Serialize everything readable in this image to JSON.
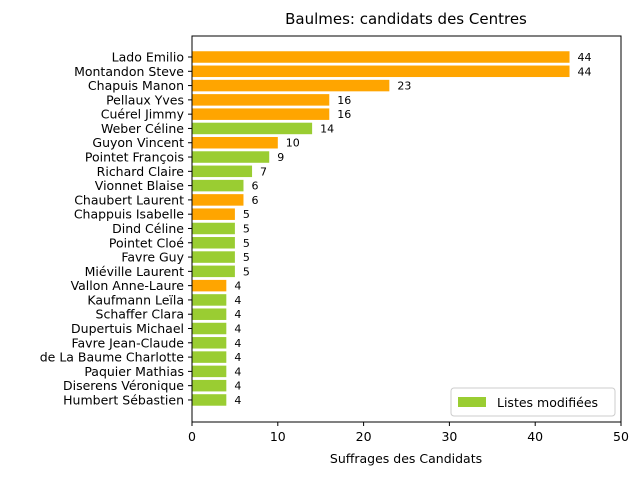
{
  "chart_data": {
    "type": "bar",
    "orientation": "horizontal",
    "title": "Baulmes: candidats des Centres",
    "xlabel": "Suffrages des Candidats",
    "ylabel": "",
    "xlim": [
      0,
      50
    ],
    "xticks": [
      0,
      10,
      20,
      30,
      40,
      50
    ],
    "grid": false,
    "legend": {
      "label": "Listes modifiées",
      "placement": "lower-right",
      "color": "#9ACD32"
    },
    "colors": {
      "orange": "#FFA500",
      "green": "#9ACD32"
    },
    "bars": [
      {
        "label": "Lado Emilio",
        "value": 44,
        "color": "orange"
      },
      {
        "label": "Montandon Steve",
        "value": 44,
        "color": "orange"
      },
      {
        "label": "Chapuis Manon",
        "value": 23,
        "color": "orange"
      },
      {
        "label": "Pellaux Yves",
        "value": 16,
        "color": "orange"
      },
      {
        "label": "Cuérel Jimmy",
        "value": 16,
        "color": "orange"
      },
      {
        "label": "Weber Céline",
        "value": 14,
        "color": "green"
      },
      {
        "label": "Guyon Vincent",
        "value": 10,
        "color": "orange"
      },
      {
        "label": "Pointet François",
        "value": 9,
        "color": "green"
      },
      {
        "label": "Richard Claire",
        "value": 7,
        "color": "green"
      },
      {
        "label": "Vionnet Blaise",
        "value": 6,
        "color": "green"
      },
      {
        "label": "Chaubert Laurent",
        "value": 6,
        "color": "orange"
      },
      {
        "label": "Chappuis Isabelle",
        "value": 5,
        "color": "orange"
      },
      {
        "label": "Dind Céline",
        "value": 5,
        "color": "green"
      },
      {
        "label": "Pointet Cloé",
        "value": 5,
        "color": "green"
      },
      {
        "label": "Favre Guy",
        "value": 5,
        "color": "green"
      },
      {
        "label": "Miéville Laurent",
        "value": 5,
        "color": "green"
      },
      {
        "label": "Vallon Anne-Laure",
        "value": 4,
        "color": "orange"
      },
      {
        "label": "Kaufmann Leïla",
        "value": 4,
        "color": "green"
      },
      {
        "label": "Schaffer Clara",
        "value": 4,
        "color": "green"
      },
      {
        "label": "Dupertuis Michael",
        "value": 4,
        "color": "green"
      },
      {
        "label": "Favre Jean-Claude",
        "value": 4,
        "color": "green"
      },
      {
        "label": "de La Baume Charlotte",
        "value": 4,
        "color": "green"
      },
      {
        "label": "Paquier Mathias",
        "value": 4,
        "color": "green"
      },
      {
        "label": "Diserens Véronique",
        "value": 4,
        "color": "green"
      },
      {
        "label": "Humbert Sébastien",
        "value": 4,
        "color": "green"
      }
    ]
  }
}
